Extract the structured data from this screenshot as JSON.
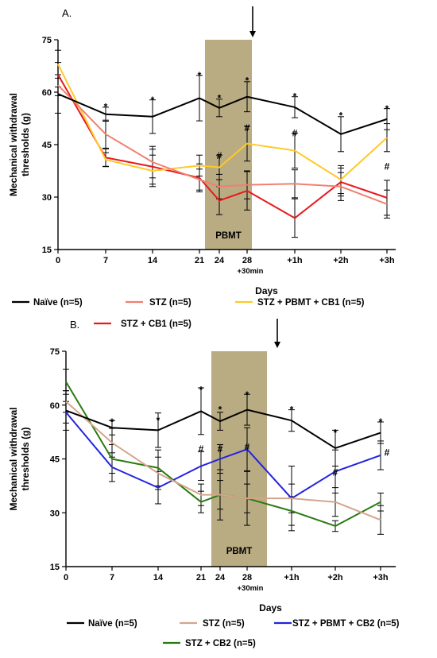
{
  "chart_data": [
    {
      "type": "line",
      "panel_label": "A.",
      "xlabel": "Days",
      "ylabel_line1": "Mechanical withdrawal",
      "ylabel_line2": "thresholds (g)",
      "ylim": [
        15,
        75
      ],
      "yticks": [
        15,
        30,
        45,
        60,
        75
      ],
      "x_ticks": [
        "0",
        "7",
        "14",
        "21",
        "24",
        "28",
        "+1h",
        "+2h",
        "+3h"
      ],
      "x_sub_label": "+30min",
      "band_label": "PBMT",
      "band_color": "#b5a77b",
      "series": [
        {
          "name": "Naïve (n=5)",
          "color": "#000000",
          "values": [
            59.5,
            53.7,
            53.0,
            58.3,
            55.5,
            58.7,
            55.7,
            48.0,
            52.3
          ],
          "errors": [
            5.5,
            2.0,
            4.8,
            6.5,
            2.5,
            4.3,
            3.0,
            5.0,
            3.0
          ]
        },
        {
          "name": "STZ (n=5)",
          "color": "#f08070",
          "values": [
            62.0,
            48.0,
            40.0,
            35.0,
            33.0,
            33.5,
            33.8,
            33.0,
            28.0
          ],
          "errors": [
            3.0,
            4.0,
            4.5,
            3.0,
            3.5,
            4.0,
            4.0,
            4.0,
            4.0
          ]
        },
        {
          "name": "STZ + PBMT + CB1 (n=5)",
          "color": "#ffc92a",
          "values": [
            68.0,
            40.7,
            37.5,
            39.0,
            38.5,
            45.3,
            43.3,
            35.0,
            47.0
          ],
          "errors": [
            4.0,
            2.0,
            4.5,
            3.0,
            3.5,
            5.0,
            5.0,
            4.0,
            4.0
          ]
        },
        {
          "name": "STZ + CB1 (n=5)",
          "color": "#e8191b",
          "values": [
            65.0,
            41.3,
            38.7,
            35.5,
            29.0,
            31.8,
            24.0,
            34.3,
            29.8
          ],
          "errors": [
            3.5,
            2.5,
            5.0,
            4.0,
            4.0,
            5.5,
            5.5,
            4.0,
            5.0
          ]
        }
      ],
      "annotations": [
        {
          "x_index": 1,
          "value": 56,
          "text": "*"
        },
        {
          "x_index": 2,
          "value": 58,
          "text": "*"
        },
        {
          "x_index": 3,
          "value": 65,
          "text": "*"
        },
        {
          "x_index": 4,
          "value": 58.5,
          "text": "*"
        },
        {
          "x_index": 5,
          "value": 63.5,
          "text": "*"
        },
        {
          "x_index": 5,
          "value": 50,
          "text": "#"
        },
        {
          "x_index": 4,
          "value": 42,
          "text": "#"
        },
        {
          "x_index": 6,
          "value": 59,
          "text": "*"
        },
        {
          "x_index": 6,
          "value": 48.5,
          "text": "#"
        },
        {
          "x_index": 7,
          "value": 53.5,
          "text": "*"
        },
        {
          "x_index": 8,
          "value": 55.5,
          "text": "*"
        },
        {
          "x_index": 8,
          "value": 39,
          "text": "#"
        }
      ]
    },
    {
      "type": "line",
      "panel_label": "B.",
      "xlabel": "Days",
      "ylabel_line1": "Mechanical withdrawal",
      "ylabel_line2": "thresholds (g)",
      "ylim": [
        15,
        75
      ],
      "yticks": [
        15,
        30,
        45,
        60,
        75
      ],
      "x_ticks": [
        "0",
        "7",
        "14",
        "21",
        "24",
        "28",
        "+1h",
        "+2h",
        "+3h"
      ],
      "x_sub_label": "+30min",
      "band_label": "PBMT",
      "band_color": "#b5a77b",
      "series": [
        {
          "name": "Naïve (n=5)",
          "color": "#000000",
          "values": [
            58.5,
            53.7,
            53.0,
            58.3,
            55.5,
            58.7,
            55.7,
            48.0,
            52.3
          ],
          "errors": [
            5.5,
            2.0,
            4.8,
            6.5,
            2.5,
            4.3,
            3.0,
            5.0,
            3.0
          ]
        },
        {
          "name": "STZ (n=5)",
          "color": "#d4a68a",
          "values": [
            61.0,
            49.5,
            41.0,
            35.0,
            35.0,
            34.0,
            34.0,
            33.0,
            28.0
          ],
          "errors": [
            3.0,
            4.0,
            4.5,
            3.0,
            4.0,
            4.0,
            4.0,
            4.0,
            4.0
          ]
        },
        {
          "name": "STZ + PBMT + CB2 (n=5)",
          "color": "#2323e0",
          "values": [
            58.0,
            42.7,
            37.0,
            43.0,
            45.0,
            47.7,
            34.0,
            41.5,
            46.0
          ],
          "errors": [
            3.0,
            4.0,
            4.5,
            4.0,
            4.0,
            6.0,
            9.0,
            6.0,
            4.0
          ]
        },
        {
          "name": "STZ + CB2 (n=5)",
          "color": "#2a7a12",
          "values": [
            66.5,
            45.0,
            42.5,
            33.0,
            35.0,
            34.0,
            30.5,
            26.3,
            33.0
          ],
          "errors": [
            3.5,
            4.0,
            5.0,
            3.0,
            7.0,
            7.5,
            4.0,
            1.5,
            2.5
          ]
        }
      ],
      "annotations": [
        {
          "x_index": 1,
          "value": 55.5,
          "text": "*"
        },
        {
          "x_index": 2,
          "value": 56,
          "text": "*"
        },
        {
          "x_index": 3,
          "value": 64.5,
          "text": "*"
        },
        {
          "x_index": 3,
          "value": 48,
          "text": "#"
        },
        {
          "x_index": 4,
          "value": 59,
          "text": "*"
        },
        {
          "x_index": 4,
          "value": 48,
          "text": "#"
        },
        {
          "x_index": 5,
          "value": 63,
          "text": "*"
        },
        {
          "x_index": 5,
          "value": 48.5,
          "text": "#"
        },
        {
          "x_index": 6,
          "value": 59,
          "text": "*"
        },
        {
          "x_index": 7,
          "value": 52.5,
          "text": "*"
        },
        {
          "x_index": 7,
          "value": 41.5,
          "text": "#"
        },
        {
          "x_index": 8,
          "value": 55.5,
          "text": "*"
        },
        {
          "x_index": 8,
          "value": 47,
          "text": "#"
        }
      ]
    }
  ]
}
